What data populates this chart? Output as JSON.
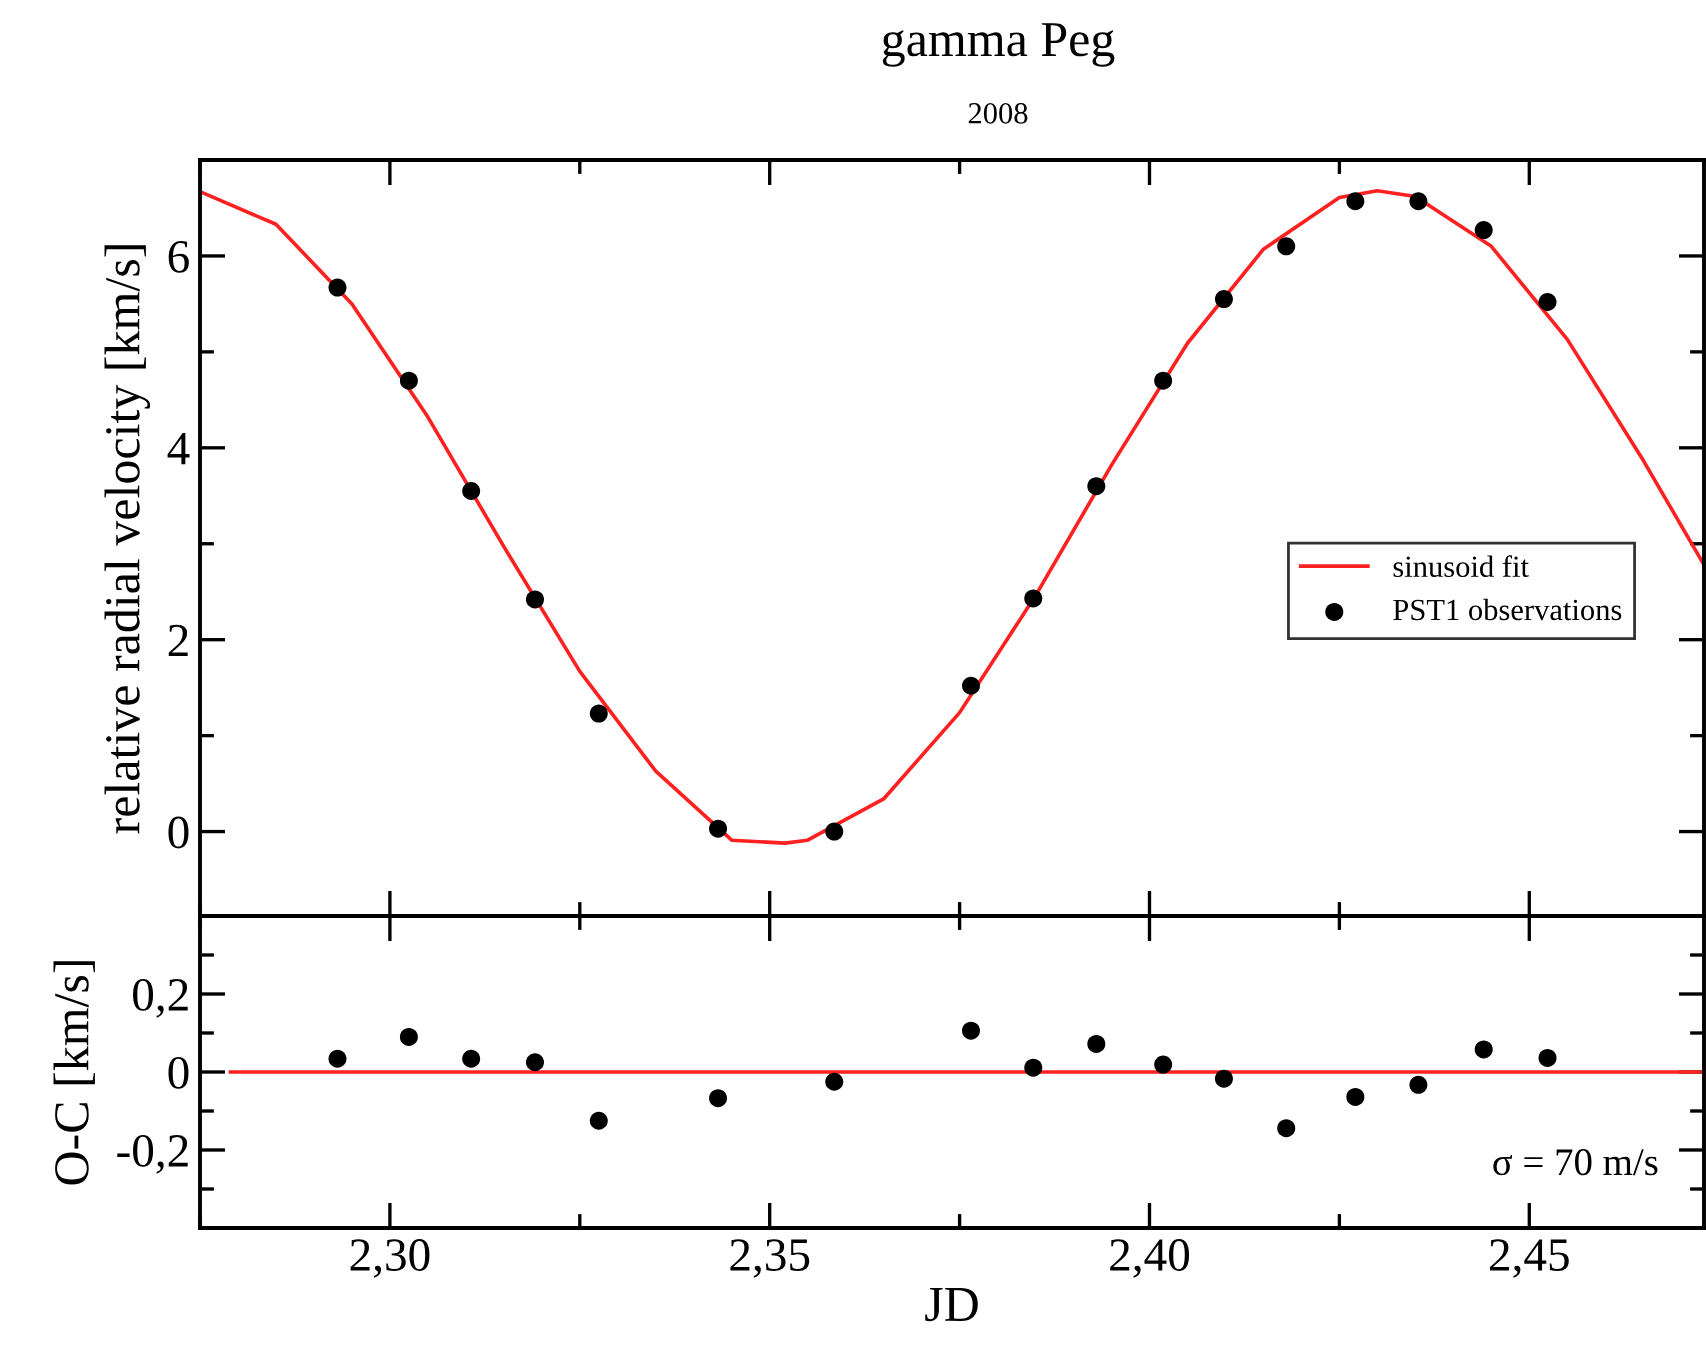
{
  "chart_data": [
    {
      "type": "scatter",
      "title": "gamma Peg",
      "subtitle": "2008",
      "ylabel": "relative radial velocity [km/s]",
      "x": [
        2.2931,
        2.3025,
        2.3107,
        2.3191,
        2.3275,
        2.3432,
        2.3585,
        2.3765,
        2.3847,
        2.393,
        2.4018,
        2.4098,
        2.418,
        2.4271,
        2.4354,
        2.444,
        2.4524
      ],
      "series": [
        {
          "name": "sinusoid fit",
          "type": "line",
          "color": "#ff2020",
          "marker": "none",
          "x": [
            2.275,
            2.285,
            2.295,
            2.305,
            2.315,
            2.325,
            2.335,
            2.345,
            2.352,
            2.355,
            2.365,
            2.375,
            2.385,
            2.395,
            2.405,
            2.415,
            2.425,
            2.43,
            2.435,
            2.445,
            2.455,
            2.465,
            2.473
          ],
          "values": [
            6.67,
            6.33,
            5.5,
            4.32,
            2.97,
            1.67,
            0.63,
            -0.09,
            -0.12,
            -0.09,
            0.34,
            1.24,
            2.46,
            3.82,
            5.09,
            6.07,
            6.61,
            6.68,
            6.62,
            6.1,
            5.13,
            3.87,
            2.78
          ]
        },
        {
          "name": "PST1 observations",
          "color": "#000000",
          "marker": "circle",
          "values": [
            5.67,
            4.7,
            3.55,
            2.42,
            1.23,
            0.03,
            0.0,
            1.52,
            2.43,
            3.6,
            4.7,
            5.55,
            6.1,
            6.57,
            6.57,
            6.27,
            5.52
          ]
        }
      ],
      "xlim": [
        2.275,
        2.473
      ],
      "xticks": [
        {
          "value": 2.3,
          "label": null
        },
        {
          "value": 2.35,
          "label": null
        },
        {
          "value": 2.4,
          "label": null
        },
        {
          "value": 2.45,
          "label": null
        }
      ],
      "ylim": [
        -0.88,
        7.0
      ],
      "yticks": [
        0,
        2,
        4,
        6
      ],
      "tick_labels": "y",
      "legend": "right",
      "grid": false
    },
    {
      "type": "scatter",
      "xlabel": "JD",
      "ylabel": "O-C [km/s]",
      "annotations": [
        "σ = 70 m/s"
      ],
      "x": [
        2.2931,
        2.3025,
        2.3107,
        2.3191,
        2.3275,
        2.3432,
        2.3585,
        2.3765,
        2.3847,
        2.393,
        2.4018,
        2.4098,
        2.418,
        2.4271,
        2.4354,
        2.444,
        2.4524
      ],
      "series": [
        {
          "type": "line",
          "color": "#ff2020",
          "marker": "none",
          "x": [
            2.279,
            2.473
          ],
          "values": [
            0,
            0
          ]
        },
        {
          "color": "#000000",
          "marker": "circle",
          "values": [
            0.034,
            0.09,
            0.034,
            0.025,
            -0.125,
            -0.067,
            -0.025,
            0.106,
            0.011,
            0.072,
            0.019,
            -0.017,
            -0.144,
            -0.064,
            -0.033,
            0.058,
            0.036
          ]
        }
      ],
      "xlim": [
        2.275,
        2.473
      ],
      "xticks": [
        {
          "value": 2.3,
          "label": "2,30"
        },
        {
          "value": 2.35,
          "label": "2,35"
        },
        {
          "value": 2.4,
          "label": "2,40"
        },
        {
          "value": 2.45,
          "label": "2,45"
        }
      ],
      "ylim": [
        -0.4,
        0.4
      ],
      "yticks": [
        {
          "value": -0.2,
          "label": "-0,2"
        },
        0,
        {
          "value": 0.2,
          "label": "0,2"
        }
      ],
      "legend": false,
      "grid": false
    }
  ]
}
